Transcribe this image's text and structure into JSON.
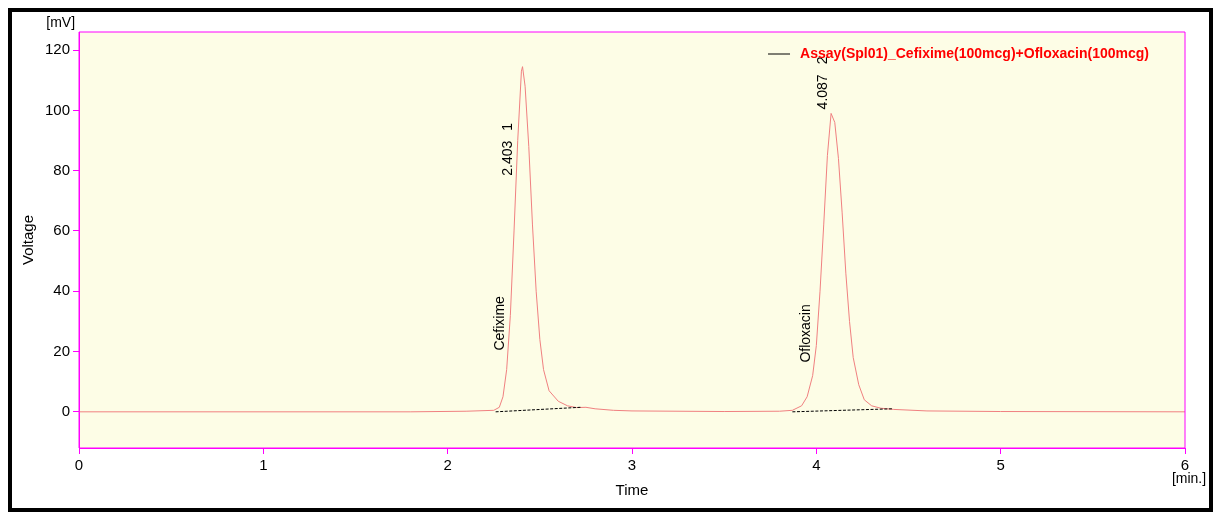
{
  "chart_data": {
    "type": "line",
    "xlabel": "Time",
    "ylabel": "Voltage",
    "xlim": [
      0,
      6
    ],
    "xticks": [
      0,
      1,
      2,
      3,
      4,
      5,
      6
    ],
    "ylim": [
      -12,
      126
    ],
    "yticks": [
      0,
      20,
      40,
      60,
      80,
      100,
      120
    ],
    "legend": "top right",
    "marker": "none",
    "series": [
      {
        "name": "Assay(Spl01)_Cefixime(100mcg)+Ofloxacin(100mcg)",
        "color": "#f08080",
        "line_style": "solid",
        "x": [
          0,
          1.8,
          2.1,
          2.25,
          2.28,
          2.3,
          2.32,
          2.34,
          2.36,
          2.38,
          2.4,
          2.406,
          2.42,
          2.44,
          2.46,
          2.48,
          2.5,
          2.52,
          2.55,
          2.6,
          2.65,
          2.7,
          2.75,
          2.8,
          2.9,
          3.0,
          3.5,
          3.8,
          3.87,
          3.92,
          3.95,
          3.98,
          4.0,
          4.02,
          4.04,
          4.06,
          4.08,
          4.1,
          4.12,
          4.14,
          4.16,
          4.18,
          4.2,
          4.23,
          4.26,
          4.3,
          4.35,
          4.42,
          4.6,
          5.0,
          6.0
        ],
        "values": [
          0,
          0,
          0.2,
          0.5,
          1.5,
          5,
          14,
          32,
          60,
          90,
          113,
          114.5,
          108,
          88,
          62,
          40,
          24,
          14,
          7,
          3.5,
          2,
          1.4,
          1.5,
          1,
          0.5,
          0.3,
          0.1,
          0.2,
          0.5,
          2,
          5,
          12,
          22,
          40,
          62,
          85,
          99,
          96,
          84,
          66,
          46,
          30,
          18,
          9,
          4,
          2,
          1.2,
          0.8,
          0.3,
          0.1,
          0
        ]
      },
      {
        "color": "#000000",
        "line_style": "dashed",
        "x": [
          2.26,
          2.72
        ],
        "values": [
          0,
          1.5
        ]
      },
      {
        "color": "#000000",
        "line_style": "dashed",
        "x": [
          3.87,
          4.41
        ],
        "values": [
          0,
          1
        ]
      }
    ],
    "annotations": [
      "[mV]",
      "[min.]",
      {
        "text": "Cefixime",
        "x": 2.326,
        "y": 19
      },
      {
        "text": "2.403",
        "x": 2.371,
        "y": 77
      },
      "1",
      {
        "text": "Ofloxacin",
        "x": 3.986,
        "y": 15
      },
      {
        "text": "4.087",
        "x": 4.08,
        "y": 99
      },
      "2"
    ]
  }
}
